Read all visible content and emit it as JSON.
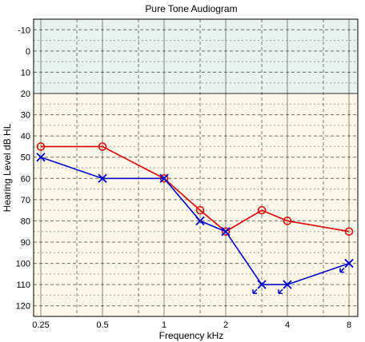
{
  "chart_data": {
    "type": "line",
    "title": "Pure Tone Audiogram",
    "xlabel": "Frequency kHz",
    "ylabel": "Hearing Level dB HL",
    "x_scale": "log",
    "x_ticks": [
      0.25,
      0.5,
      1,
      2,
      4,
      8
    ],
    "x_tick_labels": [
      "0.25",
      "0.5",
      "1",
      "2",
      "4",
      "8"
    ],
    "x_minor_ticks": [
      0.375,
      0.75,
      1.5,
      3,
      6
    ],
    "ylim": [
      -15,
      125
    ],
    "y_inverted": true,
    "y_ticks": [
      -10,
      0,
      10,
      20,
      30,
      40,
      50,
      60,
      70,
      80,
      90,
      100,
      110,
      120
    ],
    "y_tick_labels": [
      "-10",
      "0",
      "10",
      "20",
      "30",
      "40",
      "50",
      "60",
      "70",
      "80",
      "90",
      "100",
      "110",
      "120"
    ],
    "normal_band": [
      -15,
      20
    ],
    "grid": true,
    "colors": {
      "normal_band": "#e8f2ee",
      "lower_band": "#fcf7e8",
      "series_red": "#dd0000",
      "series_blue": "#0000cc",
      "grid": "#000000"
    },
    "series": [
      {
        "marker": "circle",
        "color": "#dd0000",
        "x": [
          0.25,
          0.5,
          1,
          1.5,
          2,
          3,
          4,
          8
        ],
        "y": [
          45,
          45,
          60,
          75,
          85,
          75,
          80,
          85
        ]
      },
      {
        "marker": "cross",
        "color": "#0000cc",
        "x": [
          0.25,
          0.5,
          1,
          1.5,
          2,
          3,
          4,
          8
        ],
        "y": [
          50,
          60,
          60,
          80,
          85,
          110,
          110,
          100
        ],
        "no_response_arrows": [
          false,
          false,
          false,
          false,
          false,
          true,
          true,
          true
        ]
      }
    ]
  }
}
